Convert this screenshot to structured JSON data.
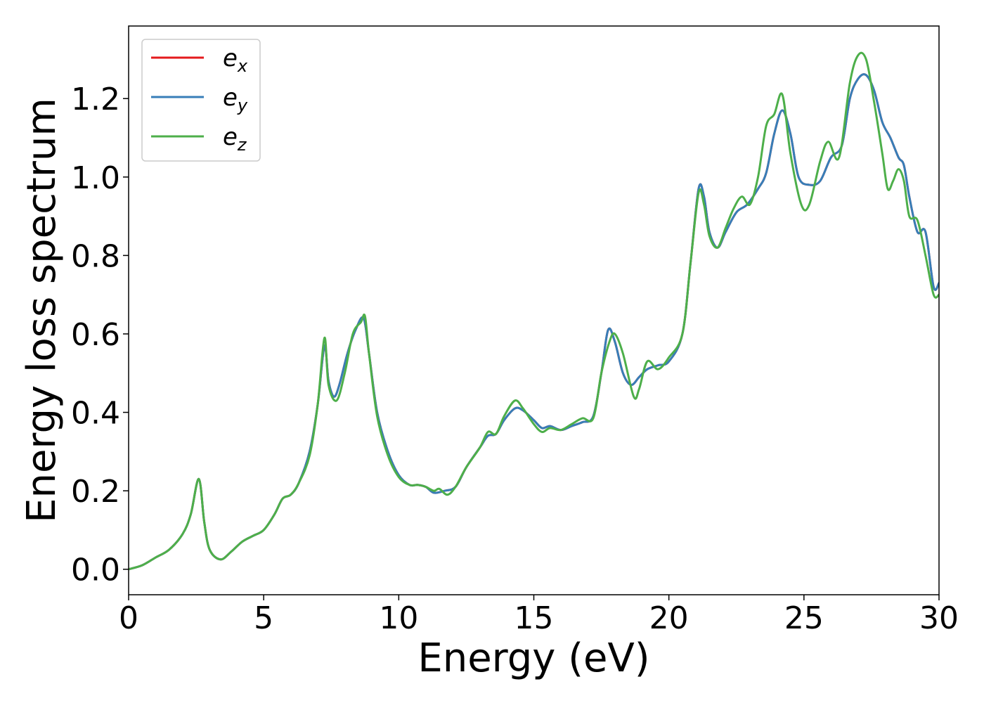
{
  "colors": {
    "e_x": "#e41a1c",
    "e_y": "#377eb8",
    "e_z": "#4daf4a",
    "axes": "#000000",
    "legend_border": "#cccccc"
  },
  "chart_data": {
    "type": "line",
    "title": "",
    "xlabel": "Energy (eV)",
    "ylabel": "Energy loss spectrum",
    "xlim": [
      0,
      30
    ],
    "ylim": [
      -0.065,
      1.385
    ],
    "xticks": [
      0,
      5,
      10,
      15,
      20,
      25,
      30
    ],
    "xtick_labels": [
      "0",
      "5",
      "10",
      "15",
      "20",
      "25",
      "30"
    ],
    "yticks": [
      0.0,
      0.2,
      0.4,
      0.6,
      0.8,
      1.0,
      1.2
    ],
    "ytick_labels": [
      "0.0",
      "0.2",
      "0.4",
      "0.6",
      "0.8",
      "1.0",
      "1.2"
    ],
    "grid": false,
    "legend_position": "upper-left",
    "series": [
      {
        "name": "e_x",
        "label_base": "e",
        "label_sub": "x",
        "color": "#e41a1c",
        "x": [
          0,
          0.5,
          1.0,
          1.5,
          2.0,
          2.3,
          2.6,
          2.8,
          3.0,
          3.4,
          3.8,
          4.2,
          4.6,
          5.0,
          5.4,
          5.7,
          6.0,
          6.3,
          6.7,
          7.0,
          7.25,
          7.4,
          7.6,
          7.8,
          8.1,
          8.4,
          8.7,
          8.9,
          9.2,
          9.6,
          10.0,
          10.4,
          10.7,
          11.0,
          11.3,
          11.7,
          12.1,
          12.5,
          13.0,
          13.3,
          13.6,
          13.9,
          14.3,
          14.6,
          15.0,
          15.3,
          15.6,
          16.0,
          16.4,
          16.8,
          17.2,
          17.5,
          17.75,
          18.0,
          18.3,
          18.6,
          18.9,
          19.2,
          19.6,
          20.0,
          20.5,
          20.8,
          21.1,
          21.3,
          21.5,
          21.8,
          22.1,
          22.5,
          22.9,
          23.3,
          23.6,
          23.9,
          24.2,
          24.5,
          24.8,
          25.2,
          25.6,
          26.0,
          26.4,
          26.7,
          27.0,
          27.3,
          27.6,
          27.9,
          28.2,
          28.5,
          28.7,
          28.9,
          29.2,
          29.5,
          29.8,
          30.0
        ],
        "y": [
          0.0,
          0.01,
          0.03,
          0.05,
          0.09,
          0.14,
          0.23,
          0.12,
          0.05,
          0.025,
          0.045,
          0.07,
          0.085,
          0.1,
          0.14,
          0.18,
          0.19,
          0.22,
          0.3,
          0.42,
          0.57,
          0.48,
          0.44,
          0.47,
          0.55,
          0.61,
          0.64,
          0.55,
          0.4,
          0.3,
          0.24,
          0.215,
          0.215,
          0.21,
          0.195,
          0.2,
          0.21,
          0.26,
          0.31,
          0.34,
          0.345,
          0.38,
          0.41,
          0.405,
          0.38,
          0.36,
          0.365,
          0.355,
          0.365,
          0.375,
          0.39,
          0.5,
          0.61,
          0.58,
          0.5,
          0.47,
          0.49,
          0.51,
          0.52,
          0.53,
          0.6,
          0.78,
          0.97,
          0.95,
          0.86,
          0.82,
          0.86,
          0.91,
          0.93,
          0.97,
          1.01,
          1.11,
          1.17,
          1.11,
          1.0,
          0.98,
          0.99,
          1.05,
          1.08,
          1.2,
          1.25,
          1.26,
          1.22,
          1.14,
          1.1,
          1.05,
          1.03,
          0.95,
          0.86,
          0.86,
          0.72,
          0.73
        ]
      },
      {
        "name": "e_y",
        "label_base": "e",
        "label_sub": "y",
        "color": "#377eb8",
        "x": [
          0,
          0.5,
          1.0,
          1.5,
          2.0,
          2.3,
          2.6,
          2.8,
          3.0,
          3.4,
          3.8,
          4.2,
          4.6,
          5.0,
          5.4,
          5.7,
          6.0,
          6.3,
          6.7,
          7.0,
          7.25,
          7.4,
          7.6,
          7.8,
          8.1,
          8.4,
          8.7,
          8.9,
          9.2,
          9.6,
          10.0,
          10.4,
          10.7,
          11.0,
          11.3,
          11.7,
          12.1,
          12.5,
          13.0,
          13.3,
          13.6,
          13.9,
          14.3,
          14.6,
          15.0,
          15.3,
          15.6,
          16.0,
          16.4,
          16.8,
          17.2,
          17.5,
          17.75,
          18.0,
          18.3,
          18.6,
          18.9,
          19.2,
          19.6,
          20.0,
          20.5,
          20.8,
          21.1,
          21.3,
          21.5,
          21.8,
          22.1,
          22.5,
          22.9,
          23.3,
          23.6,
          23.9,
          24.2,
          24.5,
          24.8,
          25.2,
          25.6,
          26.0,
          26.4,
          26.7,
          27.0,
          27.3,
          27.6,
          27.9,
          28.2,
          28.5,
          28.7,
          28.9,
          29.2,
          29.5,
          29.8,
          30.0
        ],
        "y": [
          0.0,
          0.01,
          0.03,
          0.05,
          0.09,
          0.14,
          0.23,
          0.12,
          0.05,
          0.025,
          0.045,
          0.07,
          0.085,
          0.1,
          0.14,
          0.18,
          0.19,
          0.22,
          0.3,
          0.42,
          0.57,
          0.48,
          0.44,
          0.47,
          0.55,
          0.61,
          0.64,
          0.55,
          0.4,
          0.3,
          0.24,
          0.215,
          0.215,
          0.21,
          0.195,
          0.2,
          0.21,
          0.26,
          0.31,
          0.34,
          0.345,
          0.38,
          0.41,
          0.405,
          0.38,
          0.36,
          0.365,
          0.355,
          0.365,
          0.375,
          0.39,
          0.5,
          0.61,
          0.58,
          0.5,
          0.47,
          0.49,
          0.51,
          0.52,
          0.53,
          0.6,
          0.78,
          0.97,
          0.95,
          0.86,
          0.82,
          0.86,
          0.91,
          0.93,
          0.97,
          1.01,
          1.11,
          1.17,
          1.11,
          1.0,
          0.98,
          0.99,
          1.05,
          1.08,
          1.2,
          1.25,
          1.26,
          1.22,
          1.14,
          1.1,
          1.05,
          1.03,
          0.95,
          0.86,
          0.86,
          0.72,
          0.73
        ]
      },
      {
        "name": "e_z",
        "label_base": "e",
        "label_sub": "z",
        "color": "#4daf4a",
        "x": [
          0,
          0.5,
          1.0,
          1.5,
          2.0,
          2.3,
          2.6,
          2.8,
          3.0,
          3.4,
          3.8,
          4.2,
          4.6,
          5.0,
          5.4,
          5.7,
          6.0,
          6.3,
          6.7,
          7.0,
          7.25,
          7.4,
          7.7,
          8.0,
          8.3,
          8.6,
          8.75,
          8.9,
          9.2,
          9.6,
          10.0,
          10.4,
          10.7,
          11.0,
          11.3,
          11.5,
          11.8,
          12.1,
          12.5,
          13.0,
          13.3,
          13.6,
          13.9,
          14.3,
          14.6,
          15.0,
          15.3,
          15.6,
          16.0,
          16.4,
          16.8,
          17.2,
          17.5,
          17.8,
          18.0,
          18.3,
          18.7,
          18.9,
          19.2,
          19.6,
          20.0,
          20.5,
          20.8,
          21.1,
          21.3,
          21.5,
          21.8,
          22.1,
          22.4,
          22.7,
          23.0,
          23.3,
          23.6,
          23.9,
          24.2,
          24.5,
          24.9,
          25.2,
          25.6,
          25.9,
          26.3,
          26.7,
          27.0,
          27.3,
          27.6,
          27.9,
          28.1,
          28.3,
          28.5,
          28.7,
          28.9,
          29.2,
          29.5,
          29.8,
          30.0
        ],
        "y": [
          0.0,
          0.01,
          0.03,
          0.05,
          0.09,
          0.14,
          0.23,
          0.12,
          0.05,
          0.025,
          0.045,
          0.07,
          0.085,
          0.1,
          0.14,
          0.18,
          0.19,
          0.22,
          0.29,
          0.42,
          0.59,
          0.47,
          0.43,
          0.5,
          0.6,
          0.63,
          0.645,
          0.55,
          0.39,
          0.29,
          0.235,
          0.215,
          0.215,
          0.21,
          0.2,
          0.205,
          0.19,
          0.21,
          0.26,
          0.31,
          0.35,
          0.345,
          0.39,
          0.43,
          0.41,
          0.37,
          0.35,
          0.36,
          0.355,
          0.37,
          0.385,
          0.385,
          0.5,
          0.58,
          0.6,
          0.55,
          0.44,
          0.46,
          0.53,
          0.51,
          0.54,
          0.6,
          0.78,
          0.96,
          0.93,
          0.85,
          0.82,
          0.87,
          0.92,
          0.95,
          0.93,
          1.0,
          1.13,
          1.16,
          1.21,
          1.06,
          0.93,
          0.93,
          1.04,
          1.09,
          1.05,
          1.24,
          1.31,
          1.3,
          1.19,
          1.06,
          0.97,
          0.99,
          1.02,
          0.99,
          0.9,
          0.89,
          0.8,
          0.7,
          0.7
        ]
      }
    ]
  }
}
